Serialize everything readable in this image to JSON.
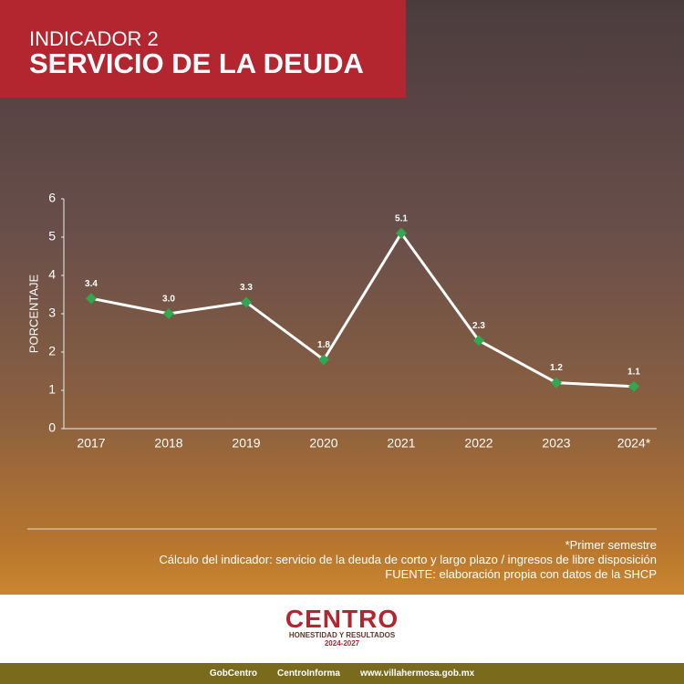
{
  "header": {
    "kicker": "INDICADOR 2",
    "title": "SERVICIO DE LA DEUDA"
  },
  "chart_data": {
    "type": "line",
    "y_label": "PORCENTAJE",
    "categories": [
      "2017",
      "2018",
      "2019",
      "2020",
      "2021",
      "2022",
      "2023",
      "2024*"
    ],
    "series": [
      {
        "name": "Servicio de la deuda",
        "color": "#ffffff",
        "marker_color": "#2fa84f",
        "values": [
          3.4,
          3.0,
          3.3,
          1.8,
          5.1,
          2.3,
          1.2,
          1.1
        ],
        "value_labels": [
          "3.4",
          "3.0",
          "3.3",
          "1.8",
          "5.1",
          "2.3",
          "1.2",
          "1.1"
        ]
      }
    ],
    "ylim": [
      0,
      6
    ],
    "yticks": [
      0,
      1,
      2,
      3,
      4,
      5,
      6
    ],
    "grid": false
  },
  "notes": [
    "*Primer semestre",
    "Cálculo del indicador: servicio de la deuda de corto y largo plazo / ingresos de libre disposición",
    "FUENTE: elaboración propia con datos de la SHCP"
  ],
  "footer": {
    "logo": "CENTRO",
    "motto": "HONESTIDAD Y RESULTADOS",
    "period": "2024-2027",
    "social1": "GobCentro",
    "social2": "CentroInforma",
    "website": "www.villahermosa.gob.mx"
  }
}
